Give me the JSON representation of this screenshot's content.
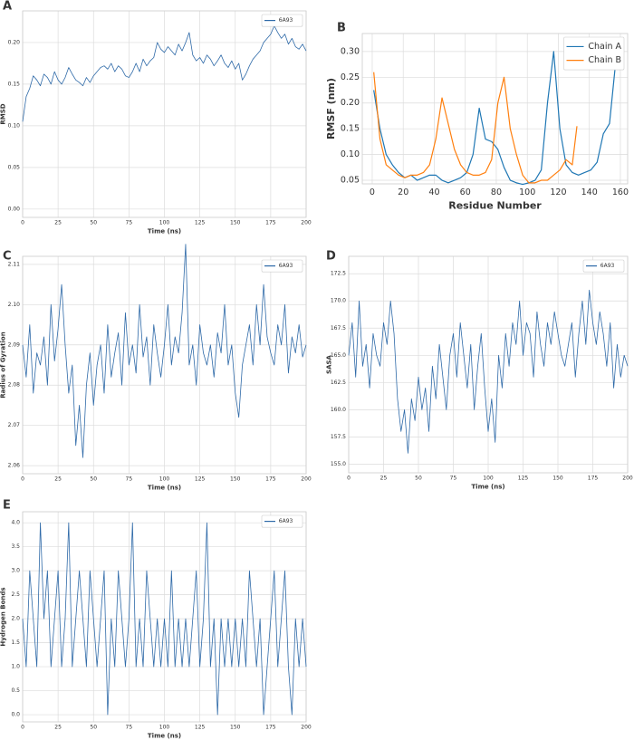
{
  "chart_data": [
    {
      "type": "line",
      "panel": "A",
      "xlabel": "Time (ns)",
      "ylabel": "RMSD",
      "grid": true,
      "legend": "upper right",
      "xlim": [
        0,
        200
      ],
      "ylim": [
        -0.01,
        0.238
      ],
      "xticks": [
        0,
        25,
        50,
        75,
        100,
        125,
        150,
        175,
        200
      ],
      "yticks": [
        {
          "value": 0,
          "label": "0.00"
        },
        0.05,
        {
          "value": 0.1,
          "label": "0.10"
        },
        0.15,
        {
          "value": 0.2,
          "label": "0.20"
        }
      ],
      "x": [
        0,
        2.5,
        5,
        7.5,
        10,
        12.5,
        15,
        17.5,
        20,
        22.5,
        25,
        27.5,
        30,
        32.5,
        35,
        37.5,
        40,
        42.5,
        45,
        47.5,
        50,
        52.5,
        55,
        57.5,
        60,
        62.5,
        65,
        67.5,
        70,
        72.5,
        75,
        77.5,
        80,
        82.5,
        85,
        87.5,
        90,
        92.5,
        95,
        97.5,
        100,
        102.5,
        105,
        107.5,
        110,
        112.5,
        115,
        117.5,
        120,
        122.5,
        125,
        127.5,
        130,
        132.5,
        135,
        137.5,
        140,
        142.5,
        145,
        147.5,
        150,
        152.5,
        155,
        157.5,
        160,
        162.5,
        165,
        167.5,
        170,
        172.5,
        175,
        177.5,
        180,
        182.5,
        185,
        187.5,
        190,
        192.5,
        195,
        197.5,
        200
      ],
      "series": [
        {
          "name": "6A93",
          "color": "#2f6aa8",
          "values": [
            0.105,
            0.135,
            0.145,
            0.16,
            0.155,
            0.148,
            0.162,
            0.158,
            0.15,
            0.165,
            0.155,
            0.15,
            0.158,
            0.17,
            0.162,
            0.155,
            0.152,
            0.148,
            0.158,
            0.152,
            0.16,
            0.165,
            0.17,
            0.172,
            0.168,
            0.175,
            0.165,
            0.172,
            0.168,
            0.16,
            0.158,
            0.165,
            0.175,
            0.165,
            0.18,
            0.172,
            0.178,
            0.182,
            0.2,
            0.192,
            0.188,
            0.195,
            0.19,
            0.185,
            0.198,
            0.19,
            0.2,
            0.212,
            0.185,
            0.178,
            0.182,
            0.175,
            0.185,
            0.18,
            0.172,
            0.178,
            0.185,
            0.175,
            0.17,
            0.178,
            0.168,
            0.175,
            0.155,
            0.162,
            0.172,
            0.18,
            0.185,
            0.19,
            0.2,
            0.205,
            0.21,
            0.22,
            0.212,
            0.205,
            0.21,
            0.198,
            0.205,
            0.195,
            0.192,
            0.198,
            0.19
          ]
        }
      ]
    },
    {
      "type": "line",
      "panel": "B",
      "xlabel": "Residue Number",
      "ylabel": "RMSF (nm)",
      "grid": true,
      "legend": "upper right",
      "xlim": [
        -6.4,
        164.7
      ],
      "ylim": [
        0.043,
        0.335
      ],
      "xticks": [
        0,
        20,
        40,
        60,
        80,
        100,
        120,
        140,
        160
      ],
      "yticks": [
        0.05,
        {
          "value": 0.1,
          "label": "0.10"
        },
        0.15,
        {
          "value": 0.2,
          "label": "0.20"
        },
        0.25,
        {
          "value": 0.3,
          "label": "0.30"
        }
      ],
      "series": [
        {
          "name": "Chain A",
          "color": "#1f77b4",
          "x": [
            1,
            5,
            9,
            13,
            17,
            21,
            25,
            29,
            33,
            37,
            41,
            45,
            49,
            53,
            57,
            61,
            65,
            69,
            73,
            77,
            81,
            85,
            89,
            93,
            97,
            101,
            105,
            109,
            113,
            117,
            121,
            125,
            129,
            133,
            137,
            141,
            145,
            149,
            153,
            157
          ],
          "values": [
            0.225,
            0.15,
            0.1,
            0.08,
            0.065,
            0.055,
            0.06,
            0.05,
            0.055,
            0.06,
            0.06,
            0.05,
            0.045,
            0.05,
            0.055,
            0.065,
            0.1,
            0.19,
            0.13,
            0.125,
            0.11,
            0.075,
            0.05,
            0.045,
            0.042,
            0.045,
            0.05,
            0.07,
            0.2,
            0.3,
            0.15,
            0.08,
            0.065,
            0.06,
            0.065,
            0.07,
            0.085,
            0.14,
            0.16,
            0.28
          ]
        },
        {
          "name": "Chain B",
          "color": "#ff7f0e",
          "x": [
            1,
            5,
            9,
            13,
            17,
            21,
            25,
            29,
            33,
            37,
            41,
            45,
            49,
            53,
            57,
            61,
            65,
            69,
            73,
            77,
            81,
            85,
            89,
            93,
            97,
            101,
            105,
            109,
            113,
            117,
            121,
            125,
            129,
            132
          ],
          "values": [
            0.26,
            0.13,
            0.08,
            0.07,
            0.06,
            0.055,
            0.06,
            0.06,
            0.065,
            0.08,
            0.13,
            0.21,
            0.16,
            0.11,
            0.08,
            0.065,
            0.06,
            0.06,
            0.065,
            0.09,
            0.2,
            0.25,
            0.15,
            0.1,
            0.06,
            0.045,
            0.045,
            0.05,
            0.05,
            0.06,
            0.07,
            0.09,
            0.08,
            0.155
          ]
        }
      ]
    },
    {
      "type": "line",
      "panel": "C",
      "xlabel": "Time (ns)",
      "ylabel": "Radius of Gyration",
      "grid": true,
      "legend": "upper right",
      "xlim": [
        0,
        200
      ],
      "ylim": [
        2.058,
        2.112
      ],
      "xticks": [
        0,
        25,
        50,
        75,
        100,
        125,
        150,
        175,
        200
      ],
      "yticks": [
        2.06,
        2.07,
        2.08,
        2.09,
        {
          "value": 2.1,
          "label": "2.10"
        },
        2.11
      ],
      "x": [
        0,
        2.5,
        5,
        7.5,
        10,
        12.5,
        15,
        17.5,
        20,
        22.5,
        25,
        27.5,
        30,
        32.5,
        35,
        37.5,
        40,
        42.5,
        45,
        47.5,
        50,
        52.5,
        55,
        57.5,
        60,
        62.5,
        65,
        67.5,
        70,
        72.5,
        75,
        77.5,
        80,
        82.5,
        85,
        87.5,
        90,
        92.5,
        95,
        97.5,
        100,
        102.5,
        105,
        107.5,
        110,
        112.5,
        115,
        117.5,
        120,
        122.5,
        125,
        127.5,
        130,
        132.5,
        135,
        137.5,
        140,
        142.5,
        145,
        147.5,
        150,
        152.5,
        155,
        157.5,
        160,
        162.5,
        165,
        167.5,
        170,
        172.5,
        175,
        177.5,
        180,
        182.5,
        185,
        187.5,
        190,
        192.5,
        195,
        197.5,
        200
      ],
      "series": [
        {
          "name": "6A93",
          "color": "#2f6aa8",
          "values": [
            2.09,
            2.082,
            2.095,
            2.078,
            2.088,
            2.085,
            2.092,
            2.08,
            2.1,
            2.086,
            2.094,
            2.105,
            2.09,
            2.078,
            2.085,
            2.065,
            2.075,
            2.062,
            2.08,
            2.088,
            2.075,
            2.085,
            2.09,
            2.078,
            2.095,
            2.082,
            2.088,
            2.093,
            2.08,
            2.098,
            2.085,
            2.09,
            2.083,
            2.1,
            2.087,
            2.092,
            2.08,
            2.095,
            2.088,
            2.082,
            2.09,
            2.1,
            2.085,
            2.092,
            2.088,
            2.098,
            2.115,
            2.085,
            2.09,
            2.08,
            2.095,
            2.088,
            2.085,
            2.09,
            2.082,
            2.093,
            2.088,
            2.1,
            2.085,
            2.09,
            2.078,
            2.072,
            2.085,
            2.09,
            2.095,
            2.085,
            2.1,
            2.09,
            2.105,
            2.092,
            2.088,
            2.085,
            2.095,
            2.09,
            2.1,
            2.083,
            2.092,
            2.088,
            2.095,
            2.087,
            2.09
          ]
        }
      ]
    },
    {
      "type": "line",
      "panel": "D",
      "xlabel": "Time (ns)",
      "ylabel": "SASA",
      "grid": true,
      "legend": "upper right",
      "xlim": [
        0,
        200
      ],
      "ylim": [
        154.2,
        174.1
      ],
      "xticks": [
        0,
        25,
        50,
        75,
        100,
        125,
        150,
        175,
        200
      ],
      "yticks": [
        {
          "value": 155,
          "label": "155.0"
        },
        157.5,
        {
          "value": 160,
          "label": "160.0"
        },
        162.5,
        {
          "value": 165,
          "label": "165.0"
        },
        167.5,
        {
          "value": 170,
          "label": "170.0"
        },
        172.5
      ],
      "x": [
        0,
        2.5,
        5,
        7.5,
        10,
        12.5,
        15,
        17.5,
        20,
        22.5,
        25,
        27.5,
        30,
        32.5,
        35,
        37.5,
        40,
        42.5,
        45,
        47.5,
        50,
        52.5,
        55,
        57.5,
        60,
        62.5,
        65,
        67.5,
        70,
        72.5,
        75,
        77.5,
        80,
        82.5,
        85,
        87.5,
        90,
        92.5,
        95,
        97.5,
        100,
        102.5,
        105,
        107.5,
        110,
        112.5,
        115,
        117.5,
        120,
        122.5,
        125,
        127.5,
        130,
        132.5,
        135,
        137.5,
        140,
        142.5,
        145,
        147.5,
        150,
        152.5,
        155,
        157.5,
        160,
        162.5,
        165,
        167.5,
        170,
        172.5,
        175,
        177.5,
        180,
        182.5,
        185,
        187.5,
        190,
        192.5,
        195,
        197.5,
        200
      ],
      "series": [
        {
          "name": "6A93",
          "color": "#2f6aa8",
          "values": [
            165,
            168,
            163,
            170,
            164,
            166,
            162,
            167,
            165,
            164,
            168,
            166,
            170,
            167,
            161,
            158,
            160,
            156,
            161,
            159,
            163,
            160,
            162,
            158,
            164,
            161,
            166,
            163,
            160,
            165,
            167,
            163,
            168,
            165,
            162,
            166,
            160,
            164,
            167,
            162,
            158,
            161,
            157,
            165,
            162,
            167,
            164,
            168,
            166,
            170,
            165,
            168,
            167,
            163,
            169,
            166,
            164,
            168,
            166,
            169,
            167,
            165,
            164,
            166,
            168,
            163,
            167,
            170,
            166,
            171,
            168,
            166,
            169,
            167,
            164,
            168,
            162,
            166,
            163,
            165,
            164
          ]
        }
      ]
    },
    {
      "type": "line",
      "panel": "E",
      "xlabel": "Time (ns)",
      "ylabel": "Hydrogen Bonds",
      "grid": true,
      "legend": "upper right",
      "xlim": [
        0,
        200
      ],
      "ylim": [
        -0.15,
        4.23
      ],
      "xticks": [
        0,
        25,
        50,
        75,
        100,
        125,
        150,
        175,
        200
      ],
      "yticks": [
        {
          "value": 0,
          "label": "0.0"
        },
        0.5,
        {
          "value": 1,
          "label": "1.0"
        },
        1.5,
        {
          "value": 2,
          "label": "2.0"
        },
        2.5,
        {
          "value": 3,
          "label": "3.0"
        },
        3.5,
        {
          "value": 4,
          "label": "4.0"
        }
      ],
      "x": [
        0,
        2.5,
        5,
        7.5,
        10,
        12.5,
        15,
        17.5,
        20,
        22.5,
        25,
        27.5,
        30,
        32.5,
        35,
        37.5,
        40,
        42.5,
        45,
        47.5,
        50,
        52.5,
        55,
        57.5,
        60,
        62.5,
        65,
        67.5,
        70,
        72.5,
        75,
        77.5,
        80,
        82.5,
        85,
        87.5,
        90,
        92.5,
        95,
        97.5,
        100,
        102.5,
        105,
        107.5,
        110,
        112.5,
        115,
        117.5,
        120,
        122.5,
        125,
        127.5,
        130,
        132.5,
        135,
        137.5,
        140,
        142.5,
        145,
        147.5,
        150,
        152.5,
        155,
        157.5,
        160,
        162.5,
        165,
        167.5,
        170,
        172.5,
        175,
        177.5,
        180,
        182.5,
        185,
        187.5,
        190,
        192.5,
        195,
        197.5,
        200
      ],
      "series": [
        {
          "name": "6A93",
          "color": "#2f6aa8",
          "values": [
            2,
            1,
            3,
            2,
            1,
            4,
            2,
            3,
            1,
            2,
            3,
            1,
            2,
            4,
            1,
            2,
            3,
            2,
            1,
            3,
            2,
            1,
            2,
            3,
            0,
            2,
            1,
            3,
            2,
            1,
            2,
            4,
            1,
            2,
            1,
            3,
            2,
            1,
            2,
            1,
            2,
            1,
            3,
            1,
            2,
            1,
            2,
            1,
            2,
            3,
            1,
            2,
            4,
            1,
            2,
            0,
            2,
            1,
            2,
            1,
            2,
            1,
            2,
            1,
            3,
            2,
            1,
            2,
            0,
            1,
            2,
            3,
            1,
            2,
            3,
            1,
            0,
            2,
            1,
            2,
            1
          ]
        }
      ]
    }
  ]
}
